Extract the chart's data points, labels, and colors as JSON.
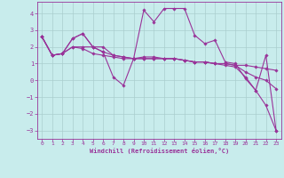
{
  "xlabel": "Windchill (Refroidissement éolien,°C)",
  "background_color": "#c8ecec",
  "grid_color": "#b0d8d8",
  "line_color": "#993399",
  "xlim": [
    -0.5,
    23.5
  ],
  "ylim": [
    -3.5,
    4.7
  ],
  "xticks": [
    0,
    1,
    2,
    3,
    4,
    5,
    6,
    7,
    8,
    9,
    10,
    11,
    12,
    13,
    14,
    15,
    16,
    17,
    18,
    19,
    20,
    21,
    22,
    23
  ],
  "yticks": [
    -3,
    -2,
    -1,
    0,
    1,
    2,
    3,
    4
  ],
  "lines": [
    {
      "x": [
        0,
        1,
        2,
        3,
        4,
        5,
        6,
        7,
        8,
        9,
        10,
        11,
        12,
        13,
        14,
        15,
        16,
        17,
        18,
        19,
        20,
        21,
        22,
        23
      ],
      "y": [
        2.6,
        1.5,
        1.6,
        2.5,
        2.8,
        2.0,
        1.7,
        0.2,
        -0.3,
        1.3,
        4.2,
        3.5,
        4.3,
        4.3,
        4.3,
        2.7,
        2.2,
        2.4,
        1.1,
        1.0,
        0.1,
        -0.6,
        1.5,
        -3.0
      ]
    },
    {
      "x": [
        0,
        1,
        2,
        3,
        4,
        5,
        6,
        7,
        8,
        9,
        10,
        11,
        12,
        13,
        14,
        15,
        16,
        17,
        18,
        19,
        20,
        21,
        22,
        23
      ],
      "y": [
        2.6,
        1.5,
        1.6,
        2.0,
        1.9,
        1.6,
        1.5,
        1.4,
        1.3,
        1.3,
        1.4,
        1.4,
        1.3,
        1.3,
        1.2,
        1.1,
        1.1,
        1.0,
        1.0,
        0.9,
        0.9,
        0.8,
        0.7,
        0.6
      ]
    },
    {
      "x": [
        0,
        1,
        2,
        3,
        4,
        5,
        6,
        7,
        8,
        9,
        10,
        11,
        12,
        13,
        14,
        15,
        16,
        17,
        18,
        19,
        20,
        21,
        22,
        23
      ],
      "y": [
        2.6,
        1.5,
        1.6,
        2.0,
        2.0,
        2.0,
        2.0,
        1.5,
        1.4,
        1.3,
        1.3,
        1.3,
        1.3,
        1.3,
        1.2,
        1.1,
        1.1,
        1.0,
        0.9,
        0.8,
        0.2,
        -0.6,
        -1.5,
        -3.0
      ]
    },
    {
      "x": [
        0,
        1,
        2,
        3,
        4,
        5,
        6,
        7,
        8,
        9,
        10,
        11,
        12,
        13,
        14,
        15,
        16,
        17,
        18,
        19,
        20,
        21,
        22,
        23
      ],
      "y": [
        2.6,
        1.5,
        1.6,
        2.5,
        2.8,
        2.0,
        1.7,
        1.5,
        1.4,
        1.3,
        1.3,
        1.3,
        1.3,
        1.3,
        1.2,
        1.1,
        1.1,
        1.0,
        1.0,
        0.9,
        0.5,
        0.2,
        0.0,
        -0.5
      ]
    }
  ]
}
